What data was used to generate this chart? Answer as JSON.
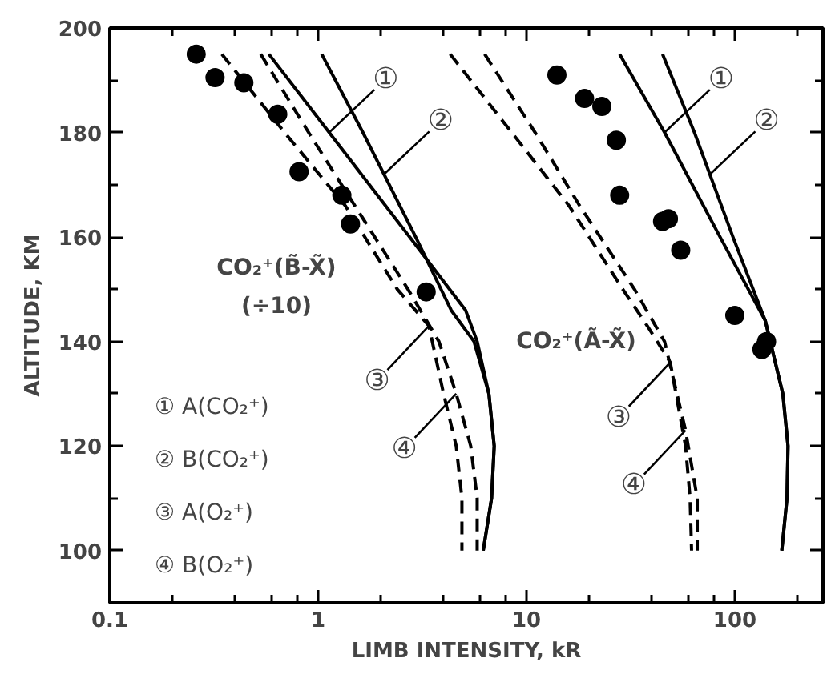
{
  "chart_data": {
    "type": "line",
    "xlabel": "LIMB INTENSITY, kR",
    "ylabel": "ALTITUDE, KM",
    "log": "x",
    "xlim": [
      0.1,
      265
    ],
    "ylim": [
      90,
      200
    ],
    "xticks": [
      0.1,
      {
        "value": 0.2,
        "label": null
      },
      {
        "value": 0.4,
        "label": null
      },
      {
        "value": 0.6,
        "label": null
      },
      {
        "value": 0.8,
        "label": null
      },
      1,
      {
        "value": 2,
        "label": null
      },
      {
        "value": 4,
        "label": null
      },
      {
        "value": 6,
        "label": null
      },
      {
        "value": 8,
        "label": null
      },
      10,
      {
        "value": 20,
        "label": null
      },
      {
        "value": 40,
        "label": null
      },
      {
        "value": 60,
        "label": null
      },
      {
        "value": 80,
        "label": null
      },
      100,
      {
        "value": 200,
        "label": null
      }
    ],
    "yticks": [
      100,
      {
        "value": 110,
        "label": null
      },
      120,
      {
        "value": 130,
        "label": null
      },
      140,
      {
        "value": 150,
        "label": null
      },
      160,
      {
        "value": 170,
        "label": null
      },
      180,
      {
        "value": 190,
        "label": null
      },
      200
    ],
    "grid": false,
    "series": [
      {
        "line_style": "solid",
        "color": "#000000",
        "x": [
          0.58,
          1.13,
          2.75,
          5.1,
          5.8,
          6.6,
          7.0,
          6.8,
          6.2
        ],
        "values": [
          195,
          180,
          160,
          146,
          140,
          130,
          120,
          110,
          100
        ]
      },
      {
        "line_style": "solid",
        "color": "#000000",
        "x": [
          1.04,
          1.64,
          2.94,
          4.35,
          5.6,
          6.6,
          7.0,
          6.8,
          6.2
        ],
        "values": [
          195,
          180,
          160,
          146,
          140,
          130,
          120,
          110,
          100
        ]
      },
      {
        "line_style": "dashed",
        "color": "#000000",
        "x": [
          0.345,
          0.69,
          1.35,
          2.4,
          3.4,
          4.0,
          4.6,
          4.9,
          4.9
        ],
        "values": [
          195,
          180,
          166,
          150,
          143,
          130,
          120,
          110,
          100
        ]
      },
      {
        "line_style": "dashed",
        "color": "#000000",
        "x": [
          0.53,
          0.9,
          1.5,
          2.7,
          3.8,
          4.6,
          5.4,
          5.8,
          5.8
        ],
        "values": [
          195,
          180,
          166,
          150,
          140,
          130,
          120,
          110,
          100
        ]
      },
      {
        "line_style": "solid",
        "color": "#000000",
        "x": [
          28,
          46,
          85,
          140,
          170,
          180,
          178,
          168
        ],
        "values": [
          195,
          180,
          160,
          144,
          130,
          120,
          110,
          100
        ]
      },
      {
        "line_style": "solid",
        "color": "#000000",
        "x": [
          45,
          64,
          98,
          140,
          170,
          180,
          178,
          168
        ],
        "values": [
          195,
          180,
          160,
          144,
          130,
          120,
          110,
          100
        ]
      },
      {
        "line_style": "dashed",
        "color": "#000000",
        "x": [
          4.3,
          8.5,
          16,
          29,
          38,
          49,
          58,
          61,
          62
        ],
        "values": [
          195,
          180,
          166,
          150,
          143,
          136,
          120,
          110,
          100
        ]
      },
      {
        "line_style": "dashed",
        "color": "#000000",
        "x": [
          6.3,
          11,
          18,
          33,
          46,
          58,
          66,
          66
        ],
        "values": [
          195,
          180,
          166,
          150,
          140,
          123,
          110,
          100
        ]
      },
      {
        "type": "scatter",
        "marker": "circle",
        "color": "#000000",
        "x": [
          0.26,
          0.32,
          0.44,
          0.64,
          0.81,
          1.3,
          1.43,
          3.3,
          14,
          19,
          23,
          27,
          28,
          48,
          45,
          55,
          100,
          142,
          135
        ],
        "values": [
          195,
          190.5,
          189.5,
          183.5,
          172.5,
          168,
          162.5,
          149.5,
          191,
          186.5,
          185,
          178.5,
          168,
          163.5,
          163,
          157.5,
          145,
          140,
          138.5
        ]
      }
    ],
    "annotations": [
      {
        "text": "①",
        "x": 1.13,
        "y": 180
      },
      {
        "text": "②",
        "x": 2.07,
        "y": 172
      },
      {
        "text": "③",
        "x": 3.4,
        "y": 143
      },
      {
        "text": "④",
        "x": 4.6,
        "y": 130
      },
      {
        "text": "①",
        "x": 46,
        "y": 180
      },
      {
        "text": "②",
        "x": 76,
        "y": 172
      },
      {
        "text": "③",
        "x": 49,
        "y": 136
      },
      {
        "text": "④",
        "x": 58,
        "y": 123
      },
      "CO₂⁺(B̃-X̃)",
      "(÷10)",
      "CO₂⁺(Ã-X̃)",
      "① A(CO₂⁺)",
      "② B(CO₂⁺)",
      "③ A(O₂⁺)",
      "④ B(O₂⁺)"
    ]
  }
}
